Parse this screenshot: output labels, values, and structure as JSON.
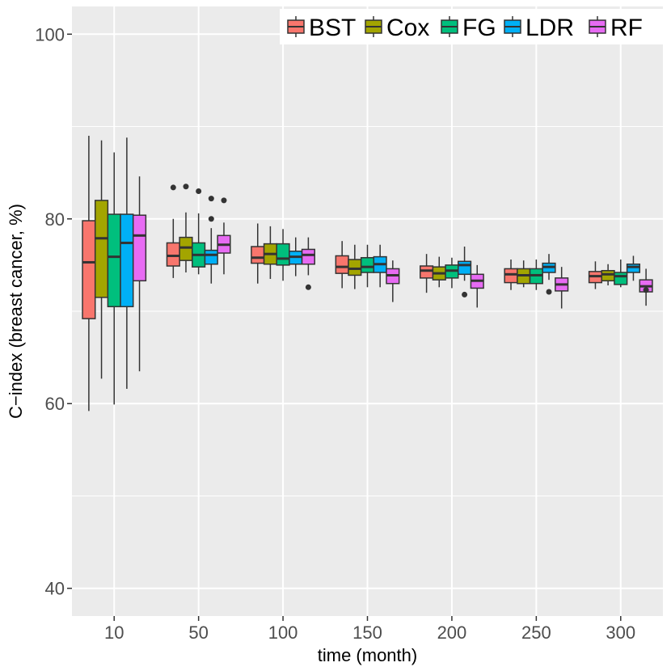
{
  "chart_data": {
    "type": "boxplot",
    "xlabel": "time (month)",
    "ylabel": "C−index (breast cancer, %)",
    "ylim": [
      37,
      103
    ],
    "y_ticks": [
      40,
      60,
      80,
      100
    ],
    "categories": [
      "10",
      "50",
      "100",
      "150",
      "200",
      "250",
      "300"
    ],
    "legend_position": "top-right",
    "series": [
      {
        "name": "BST",
        "color": "#F8766D",
        "boxes": [
          {
            "min": 59.2,
            "q1": 69.2,
            "median": 75.3,
            "q3": 79.8,
            "max": 89.0,
            "outliers": []
          },
          {
            "min": 73.6,
            "q1": 74.9,
            "median": 76.0,
            "q3": 77.4,
            "max": 80.0,
            "outliers": [
              83.4
            ]
          },
          {
            "min": 73.0,
            "q1": 75.2,
            "median": 75.8,
            "q3": 77.0,
            "max": 79.5,
            "outliers": []
          },
          {
            "min": 72.5,
            "q1": 74.1,
            "median": 74.8,
            "q3": 76.0,
            "max": 77.6,
            "outliers": []
          },
          {
            "min": 72.0,
            "q1": 73.6,
            "median": 74.4,
            "q3": 74.9,
            "max": 76.2,
            "outliers": []
          },
          {
            "min": 72.3,
            "q1": 73.1,
            "median": 74.0,
            "q3": 74.6,
            "max": 75.6,
            "outliers": []
          },
          {
            "min": 72.4,
            "q1": 73.1,
            "median": 73.8,
            "q3": 74.3,
            "max": 75.4,
            "outliers": []
          }
        ]
      },
      {
        "name": "Cox",
        "color": "#A3A500",
        "boxes": [
          {
            "min": 62.7,
            "q1": 71.5,
            "median": 77.9,
            "q3": 82.0,
            "max": 88.5,
            "outliers": []
          },
          {
            "min": 74.2,
            "q1": 75.5,
            "median": 76.9,
            "q3": 78.0,
            "max": 80.7,
            "outliers": [
              83.5
            ]
          },
          {
            "min": 73.5,
            "q1": 75.1,
            "median": 76.2,
            "q3": 77.3,
            "max": 79.2,
            "outliers": []
          },
          {
            "min": 72.4,
            "q1": 73.9,
            "median": 74.6,
            "q3": 75.6,
            "max": 77.2,
            "outliers": []
          },
          {
            "min": 72.6,
            "q1": 73.4,
            "median": 74.1,
            "q3": 74.8,
            "max": 75.9,
            "outliers": []
          },
          {
            "min": 72.6,
            "q1": 73.0,
            "median": 73.9,
            "q3": 74.6,
            "max": 75.5,
            "outliers": []
          },
          {
            "min": 72.8,
            "q1": 73.3,
            "median": 74.0,
            "q3": 74.4,
            "max": 75.1,
            "outliers": []
          }
        ]
      },
      {
        "name": "FG",
        "color": "#00BF7D",
        "boxes": [
          {
            "min": 59.9,
            "q1": 70.5,
            "median": 75.9,
            "q3": 80.5,
            "max": 87.2,
            "outliers": []
          },
          {
            "min": 74.0,
            "q1": 74.8,
            "median": 76.1,
            "q3": 77.4,
            "max": 80.6,
            "outliers": [
              83.0
            ]
          },
          {
            "min": 73.3,
            "q1": 75.0,
            "median": 75.7,
            "q3": 77.3,
            "max": 78.9,
            "outliers": []
          },
          {
            "min": 72.6,
            "q1": 74.2,
            "median": 74.8,
            "q3": 75.8,
            "max": 77.2,
            "outliers": []
          },
          {
            "min": 72.5,
            "q1": 73.6,
            "median": 74.4,
            "q3": 75.0,
            "max": 75.8,
            "outliers": []
          },
          {
            "min": 72.3,
            "q1": 73.0,
            "median": 73.9,
            "q3": 74.6,
            "max": 75.6,
            "outliers": []
          },
          {
            "min": 72.6,
            "q1": 72.9,
            "median": 73.8,
            "q3": 74.2,
            "max": 75.6,
            "outliers": []
          }
        ]
      },
      {
        "name": "LDR",
        "color": "#00B0F6",
        "boxes": [
          {
            "min": 61.6,
            "q1": 70.5,
            "median": 77.4,
            "q3": 80.5,
            "max": 88.8,
            "outliers": []
          },
          {
            "min": 73.0,
            "q1": 75.1,
            "median": 76.1,
            "q3": 76.6,
            "max": 79.0,
            "outliers": [
              82.2,
              80.0
            ]
          },
          {
            "min": 73.8,
            "q1": 75.1,
            "median": 75.9,
            "q3": 76.5,
            "max": 78.0,
            "outliers": []
          },
          {
            "min": 72.6,
            "q1": 74.2,
            "median": 75.1,
            "q3": 75.9,
            "max": 77.2,
            "outliers": []
          },
          {
            "min": 73.3,
            "q1": 74.0,
            "median": 75.0,
            "q3": 75.4,
            "max": 77.0,
            "outliers": [
              71.8
            ]
          },
          {
            "min": 73.4,
            "q1": 74.2,
            "median": 74.8,
            "q3": 75.2,
            "max": 76.2,
            "outliers": [
              72.1
            ]
          },
          {
            "min": 73.3,
            "q1": 74.2,
            "median": 74.8,
            "q3": 75.1,
            "max": 76.0,
            "outliers": []
          }
        ]
      },
      {
        "name": "RF",
        "color": "#E76BF3",
        "boxes": [
          {
            "min": 63.5,
            "q1": 73.3,
            "median": 78.2,
            "q3": 80.4,
            "max": 84.6,
            "outliers": []
          },
          {
            "min": 74.0,
            "q1": 76.3,
            "median": 77.2,
            "q3": 78.2,
            "max": 79.6,
            "outliers": [
              82.0
            ]
          },
          {
            "min": 73.9,
            "q1": 75.1,
            "median": 76.1,
            "q3": 76.7,
            "max": 78.0,
            "outliers": [
              72.6
            ]
          },
          {
            "min": 71.0,
            "q1": 73.0,
            "median": 73.9,
            "q3": 74.6,
            "max": 75.5,
            "outliers": []
          },
          {
            "min": 70.4,
            "q1": 72.5,
            "median": 73.3,
            "q3": 74.0,
            "max": 75.0,
            "outliers": []
          },
          {
            "min": 70.3,
            "q1": 72.2,
            "median": 72.9,
            "q3": 73.6,
            "max": 74.8,
            "outliers": []
          },
          {
            "min": 70.6,
            "q1": 72.1,
            "median": 72.7,
            "q3": 73.4,
            "max": 74.6,
            "outliers": [
              72.3
            ]
          }
        ]
      }
    ]
  }
}
